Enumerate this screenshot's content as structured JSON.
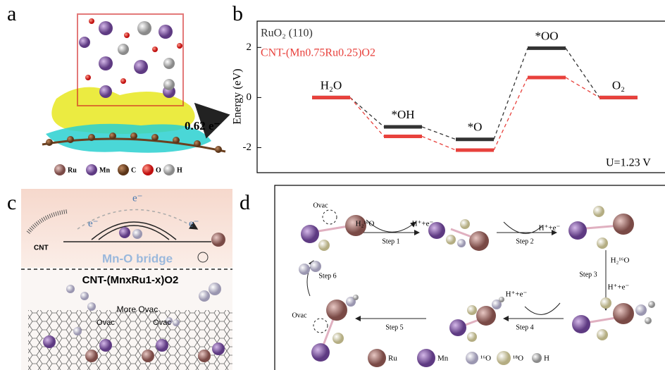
{
  "panels": {
    "a": {
      "label": "a",
      "annotation": "0.62 e⁻",
      "legend": [
        "Ru",
        "Mn",
        "C",
        "O",
        "H"
      ]
    },
    "c": {
      "label": "c",
      "electron": "e⁻",
      "cnt": "CNT",
      "bridge": "Mn-O bridge",
      "formula": "CNT-(MnxRu1-x)O2",
      "more_ovac": "More Ovac",
      "ovac": "Ovac"
    },
    "d": {
      "label": "d",
      "ovac": "Ovac",
      "steps": [
        "Step 1",
        "Step 2",
        "Step 3",
        "Step 4",
        "Step 5",
        "Step 6"
      ],
      "reactions": [
        "H₂¹⁶O",
        "H⁺+e⁻",
        "H⁺+e⁻",
        "H₂¹⁶O",
        "H⁺+e⁻",
        "H⁺+e⁻"
      ],
      "legend": [
        "Ru",
        "Mn",
        "¹⁶O",
        "¹⁸O",
        "H"
      ]
    }
  },
  "chart_data": {
    "type": "energy-level",
    "panel_label": "b",
    "y_label": "Energy (eV)",
    "annotation": "U=1.23 V",
    "categories": [
      "H₂O",
      "*OH",
      "*O",
      "*OO",
      "O₂"
    ],
    "series": [
      {
        "name": "RuO₂ (110)",
        "color": "#333333",
        "values": [
          0,
          -1.17,
          -1.67,
          1.97,
          0
        ]
      },
      {
        "name": "CNT-(Mn0.75Ru0.25)O2",
        "color": "#e8413c",
        "values": [
          0,
          -1.55,
          -2.1,
          0.8,
          0
        ]
      }
    ],
    "ylim": [
      -3,
      3.05
    ],
    "yticks": [
      -2,
      0,
      2
    ]
  }
}
